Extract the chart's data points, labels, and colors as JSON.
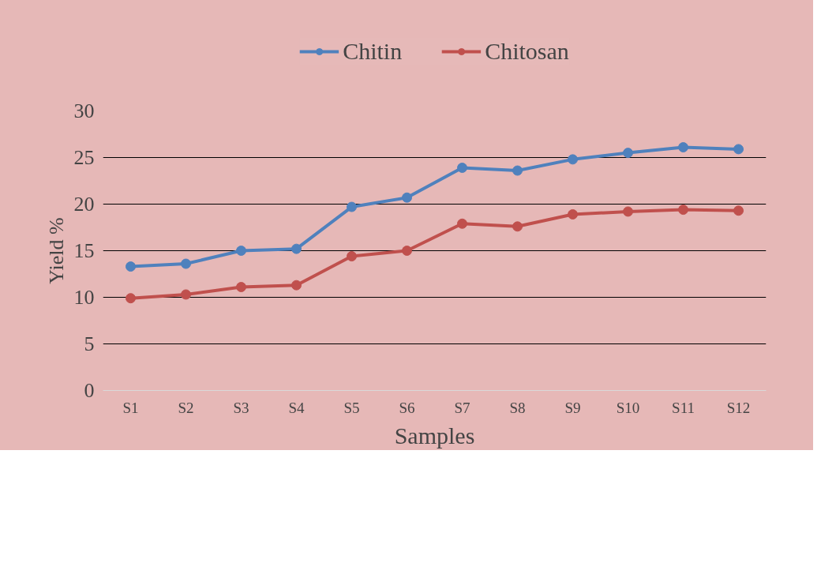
{
  "chart_data": {
    "type": "line",
    "xlabel": "Samples",
    "ylabel": "Yield %",
    "categories": [
      "S1",
      "S2",
      "S3",
      "S4",
      "S5",
      "S6",
      "S7",
      "S8",
      "S9",
      "S10",
      "S11",
      "S12"
    ],
    "series": [
      {
        "name": "Chitin",
        "color": "#4f81bd",
        "values": [
          13.3,
          13.6,
          15.0,
          15.2,
          19.7,
          20.7,
          23.9,
          23.6,
          24.8,
          25.5,
          26.1,
          25.9
        ]
      },
      {
        "name": "Chitosan",
        "color": "#c0504d",
        "values": [
          9.9,
          10.3,
          11.1,
          11.3,
          14.4,
          15.0,
          17.9,
          17.6,
          18.9,
          19.2,
          19.4,
          19.3
        ]
      }
    ],
    "ylim": [
      0,
      30
    ],
    "yticks": [
      0,
      5,
      10,
      15,
      20,
      25,
      30
    ],
    "grid": "y",
    "legend": "top",
    "marker": "circle",
    "line_style": "solid"
  }
}
